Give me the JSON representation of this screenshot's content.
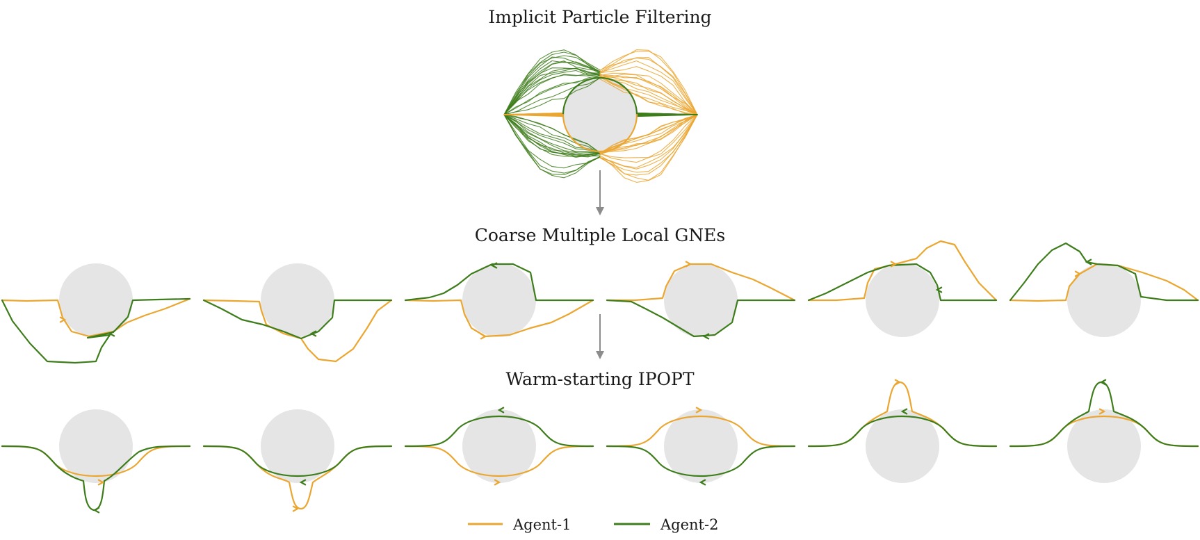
{
  "colors": {
    "agent1": "#eba630",
    "agent2": "#3e7d1b",
    "obstacle": "#e5e5e5",
    "flow_arrow": "#8c8c8c"
  },
  "stages": {
    "stage1_title": "Implicit Particle Filtering",
    "stage2_title": "Coarse Multiple Local GNEs",
    "stage3_title": "Warm-starting IPOPT"
  },
  "legend": {
    "agent1_label": "Agent-1",
    "agent2_label": "Agent-2"
  },
  "panels": {
    "coarse": [
      {
        "agent1": "below",
        "agent2": "below-detour"
      },
      {
        "agent1": "below-detour",
        "agent2": "below"
      },
      {
        "agent1": "below",
        "agent2": "above"
      },
      {
        "agent1": "above",
        "agent2": "below"
      },
      {
        "agent1": "above-detour",
        "agent2": "above"
      },
      {
        "agent1": "above",
        "agent2": "above-detour"
      }
    ],
    "refined": [
      {
        "agent1": "below",
        "agent2": "below-detour"
      },
      {
        "agent1": "below-detour",
        "agent2": "below"
      },
      {
        "agent1": "below",
        "agent2": "above"
      },
      {
        "agent1": "above",
        "agent2": "below"
      },
      {
        "agent1": "above-detour",
        "agent2": "above"
      },
      {
        "agent1": "above",
        "agent2": "above-detour"
      }
    ]
  }
}
